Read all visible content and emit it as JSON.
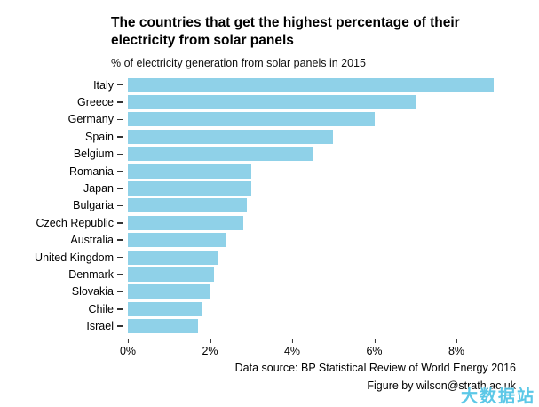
{
  "chart": {
    "title": "The countries that get the highest percentage of their electricity from solar panels",
    "subtitle": "% of electricity generation from solar panels in 2015"
  },
  "chart_data": {
    "type": "bar",
    "orientation": "horizontal",
    "title": "The countries that get the highest percentage of their electricity from solar panels",
    "subtitle": "% of electricity generation from solar panels in 2015",
    "categories": [
      "Italy",
      "Greece",
      "Germany",
      "Spain",
      "Belgium",
      "Romania",
      "Japan",
      "Bulgaria",
      "Czech Republic",
      "Australia",
      "United Kingdom",
      "Denmark",
      "Slovakia",
      "Chile",
      "Israel"
    ],
    "values": [
      8.9,
      7.0,
      6.0,
      5.0,
      4.5,
      3.0,
      3.0,
      2.9,
      2.8,
      2.4,
      2.2,
      2.1,
      2.0,
      1.8,
      1.7
    ],
    "xlabel": "",
    "ylabel": "",
    "xlim": [
      0,
      9.1
    ],
    "x_ticks": [
      "0%",
      "2%",
      "4%",
      "6%",
      "8%"
    ],
    "x_tick_values": [
      0,
      2,
      4,
      6,
      8
    ],
    "bar_color": "#8FD1E8",
    "grid": false,
    "legend": "none"
  },
  "footer": {
    "data_source": "Data source: BP Statistical Review of World Energy 2016",
    "credit": "Figure by  wilson@strath.ac.uk"
  },
  "watermark": {
    "text": "大数据站",
    "color": "#4FC4E6"
  }
}
